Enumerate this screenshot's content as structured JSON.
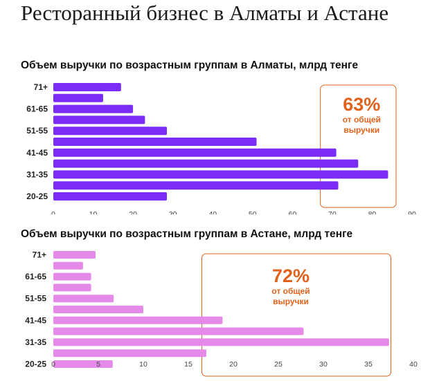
{
  "header": {
    "title": "Ресторанный бизнес в Алматы и Астане"
  },
  "colors": {
    "almaty_bar": "#7a2cf5",
    "astana_bar": "#e58ae8",
    "highlight": "#e2621b"
  },
  "chart_data": [
    {
      "type": "bar",
      "orientation": "horizontal",
      "title": "Объем выручки по возрастным группам в Алматы, млрд тенге",
      "category_labels": [
        "71+",
        "61-65",
        "51-55",
        "41-45",
        "31-35",
        "20-25"
      ],
      "values_top_to_bottom": [
        17,
        12.5,
        20,
        23,
        28.5,
        51,
        71,
        76.5,
        84,
        71.5,
        28.5
      ],
      "xlim": [
        0,
        90
      ],
      "xticks": [
        "0",
        "10",
        "20",
        "30",
        "40",
        "50",
        "60",
        "70",
        "80",
        "90"
      ],
      "highlight": {
        "range": [
          67,
          86
        ],
        "percent": "63%",
        "caption_line1": "от общей",
        "caption_line2": "выручки"
      },
      "grid": false
    },
    {
      "type": "bar",
      "orientation": "horizontal",
      "title": "Объем выручки по возрастным группам в Астане, млрд тенге",
      "category_labels": [
        "71+",
        "61-65",
        "51-55",
        "41-45",
        "31-35",
        "20-25"
      ],
      "values_top_to_bottom": [
        4.7,
        3.3,
        4.2,
        4.2,
        6.7,
        10,
        18.8,
        27.8,
        37.3,
        17,
        6.6
      ],
      "xlim": [
        0,
        40
      ],
      "xticks": [
        "0",
        "5",
        "10",
        "15",
        "20",
        "25",
        "30",
        "35",
        "40"
      ],
      "highlight": {
        "range": [
          16.5,
          37.5
        ],
        "percent": "72%",
        "caption_line1": "от общей",
        "caption_line2": "выручки"
      },
      "grid": false
    }
  ]
}
